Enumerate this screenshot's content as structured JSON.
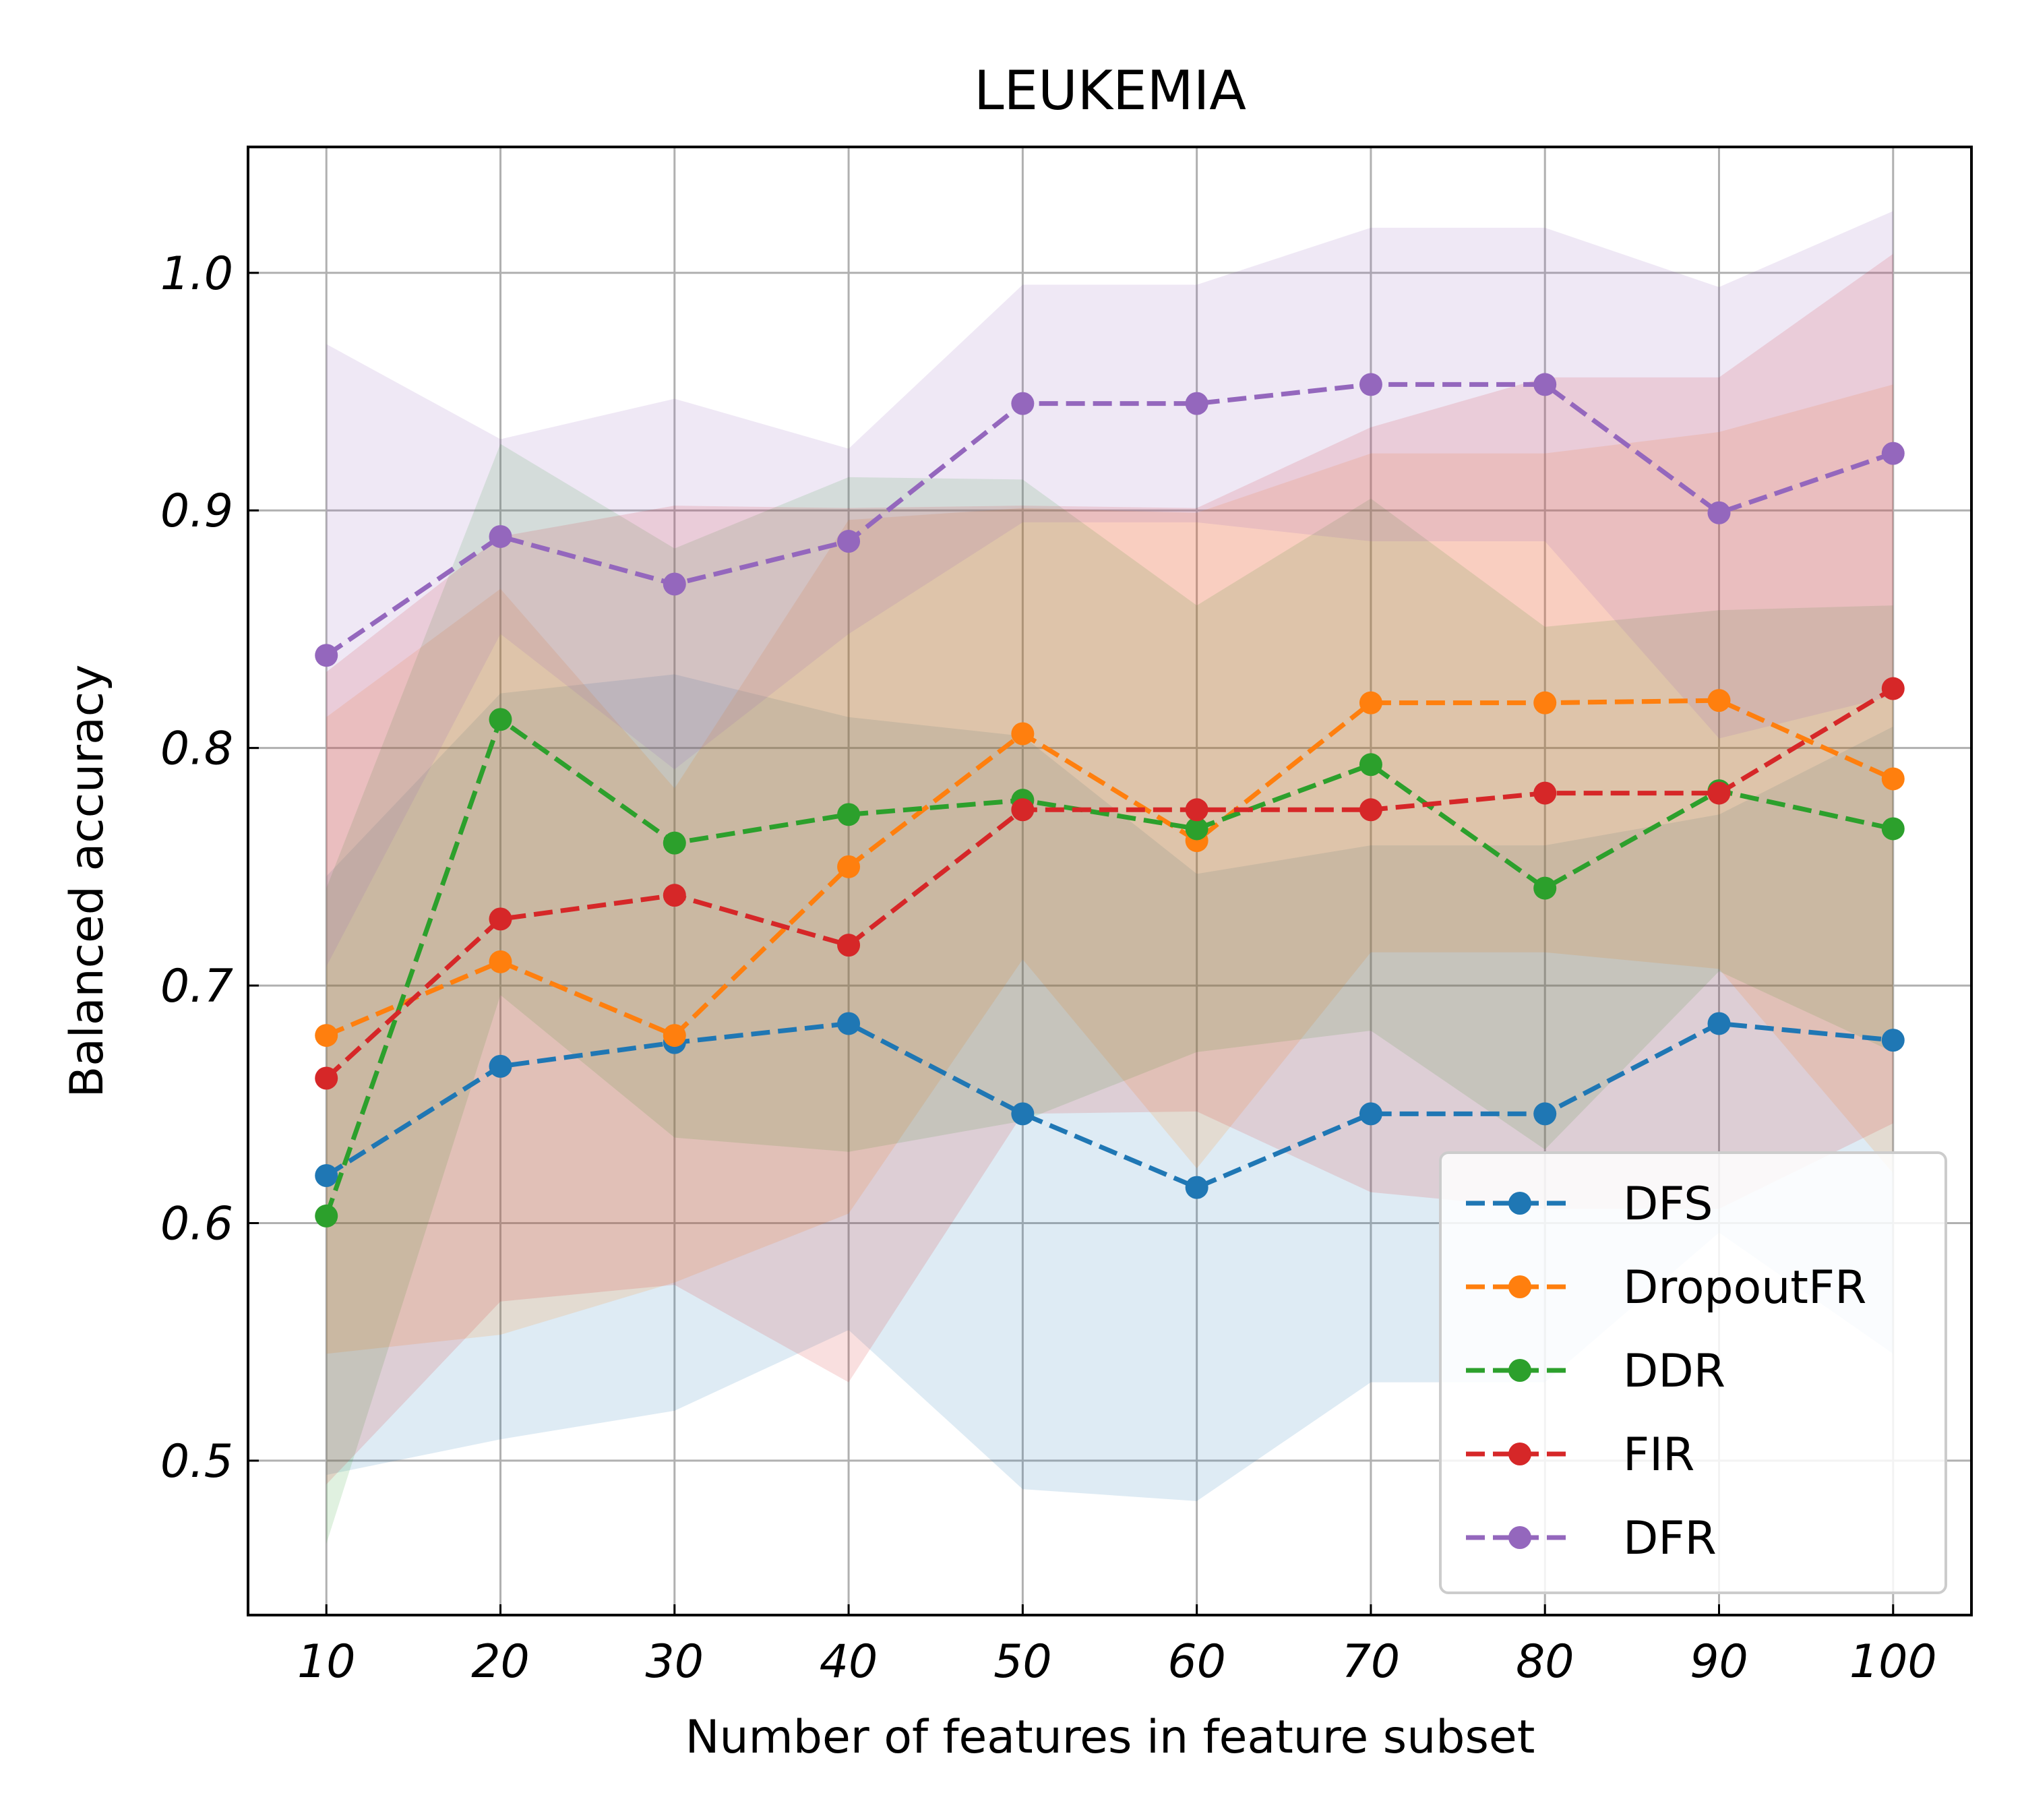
{
  "chart_data": {
    "type": "line",
    "title": "LEUKEMIA",
    "xlabel": "Number of features in feature subset",
    "ylabel": "Balanced accuracy",
    "x": [
      10,
      20,
      30,
      40,
      50,
      60,
      70,
      80,
      90,
      100
    ],
    "xticks": [
      "10",
      "20",
      "30",
      "40",
      "50",
      "60",
      "70",
      "80",
      "90",
      "100"
    ],
    "yticks": [
      "0.5",
      "0.6",
      "0.7",
      "0.8",
      "0.9",
      "1.0"
    ],
    "ytick_values": [
      0.5,
      0.6,
      0.7,
      0.8,
      0.9,
      1.0
    ],
    "xlim": [
      5.5,
      104.5
    ],
    "ylim": [
      0.435,
      1.053
    ],
    "grid": true,
    "legend_position": "lower-right",
    "series": [
      {
        "name": "DFS",
        "color": "#1f77b4",
        "values": [
          0.62,
          0.666,
          0.676,
          0.684,
          0.646,
          0.615,
          0.646,
          0.646,
          0.684,
          0.677
        ],
        "lower": [
          0.494,
          0.509,
          0.521,
          0.555,
          0.488,
          0.483,
          0.533,
          0.533,
          0.596,
          0.545
        ],
        "upper": [
          0.746,
          0.823,
          0.831,
          0.813,
          0.805,
          0.747,
          0.759,
          0.759,
          0.772,
          0.809
        ]
      },
      {
        "name": "DropoutFR",
        "color": "#ff7f0e",
        "values": [
          0.679,
          0.71,
          0.679,
          0.75,
          0.806,
          0.761,
          0.819,
          0.819,
          0.82,
          0.787
        ],
        "lower": [
          0.545,
          0.553,
          0.575,
          0.604,
          0.711,
          0.623,
          0.714,
          0.714,
          0.707,
          0.621
        ],
        "upper": [
          0.813,
          0.867,
          0.783,
          0.896,
          0.901,
          0.899,
          0.924,
          0.924,
          0.933,
          0.953
        ]
      },
      {
        "name": "DDR",
        "color": "#2ca02c",
        "values": [
          0.603,
          0.812,
          0.76,
          0.772,
          0.778,
          0.766,
          0.793,
          0.741,
          0.782,
          0.766
        ],
        "lower": [
          0.465,
          0.696,
          0.636,
          0.63,
          0.643,
          0.672,
          0.681,
          0.631,
          0.706,
          0.672
        ],
        "upper": [
          0.741,
          0.928,
          0.884,
          0.914,
          0.913,
          0.86,
          0.905,
          0.851,
          0.858,
          0.86
        ]
      },
      {
        "name": "FIR",
        "color": "#d62728",
        "values": [
          0.661,
          0.728,
          0.738,
          0.717,
          0.774,
          0.774,
          0.774,
          0.781,
          0.781,
          0.825
        ],
        "lower": [
          0.49,
          0.567,
          0.574,
          0.533,
          0.646,
          0.647,
          0.613,
          0.606,
          0.606,
          0.642
        ],
        "upper": [
          0.832,
          0.889,
          0.902,
          0.901,
          0.902,
          0.901,
          0.935,
          0.956,
          0.956,
          1.008
        ]
      },
      {
        "name": "DFR",
        "color": "#9467bd",
        "values": [
          0.839,
          0.889,
          0.869,
          0.887,
          0.945,
          0.945,
          0.953,
          0.953,
          0.899,
          0.924
        ],
        "lower": [
          0.708,
          0.848,
          0.791,
          0.848,
          0.895,
          0.895,
          0.887,
          0.887,
          0.804,
          0.822
        ],
        "upper": [
          0.97,
          0.93,
          0.947,
          0.926,
          0.995,
          0.995,
          1.019,
          1.019,
          0.994,
          1.026
        ]
      }
    ]
  }
}
